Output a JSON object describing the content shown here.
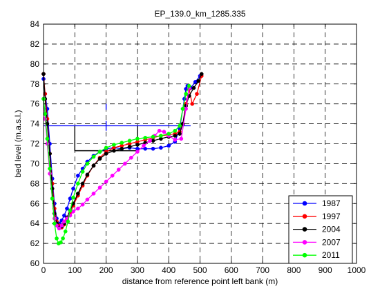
{
  "chart_data": {
    "type": "line",
    "title": "EP_139.0_km_1285.335",
    "xlabel": "distance from reference point left bank (m)",
    "ylabel": "bed level (m.a.s.l.)",
    "xlim": [
      0,
      1000
    ],
    "ylim": [
      60,
      84
    ],
    "xticks": [
      0,
      100,
      200,
      300,
      400,
      500,
      600,
      700,
      800,
      900,
      1000
    ],
    "yticks": [
      60,
      62,
      64,
      66,
      68,
      70,
      72,
      74,
      76,
      78,
      80,
      82,
      84
    ],
    "grid": true,
    "legend_position": "bottom-right",
    "annotation_lines": [
      {
        "name": "structure-outline",
        "color": "#000000",
        "x": [
          100,
          100,
          300,
          300
        ],
        "y": [
          73.8,
          71.3,
          71.3,
          73.8
        ]
      },
      {
        "name": "reference-level",
        "color": "#0000ff",
        "x": [
          0,
          470
        ],
        "y": [
          73.8,
          73.8
        ]
      },
      {
        "name": "reference-tick",
        "color": "#0000ff",
        "x": [
          200,
          200
        ],
        "y": [
          73.3,
          74.3
        ]
      },
      {
        "name": "reference-tick-top",
        "color": "#0000ff",
        "x": [
          200,
          200
        ],
        "y": [
          75.4,
          76.0
        ]
      }
    ],
    "series": [
      {
        "name": "1987",
        "color": "#0000ff",
        "x": [
          0,
          5,
          12,
          20,
          28,
          35,
          42,
          50,
          58,
          66,
          75,
          85,
          95,
          110,
          125,
          140,
          160,
          180,
          200,
          225,
          250,
          275,
          300,
          325,
          350,
          375,
          400,
          420,
          435,
          445,
          450,
          455,
          460,
          470,
          485,
          500
        ],
        "y": [
          78.5,
          77,
          75.5,
          72,
          68.5,
          66,
          64.5,
          64,
          64.3,
          64.8,
          65.5,
          66.5,
          67.5,
          68.8,
          69.5,
          70.2,
          70.8,
          71.2,
          71.5,
          71.6,
          71.5,
          71.6,
          71.5,
          71.5,
          71.5,
          71.6,
          71.8,
          72.2,
          73.5,
          75.5,
          76.5,
          77.5,
          77.8,
          77.6,
          78.2,
          78.8
        ]
      },
      {
        "name": "1997",
        "color": "#ff0000",
        "x": [
          0,
          5,
          12,
          20,
          28,
          35,
          42,
          50,
          58,
          66,
          75,
          85,
          95,
          110,
          125,
          140,
          160,
          180,
          200,
          225,
          250,
          275,
          300,
          325,
          350,
          375,
          400,
          420,
          435,
          445,
          455,
          465,
          475,
          490,
          505
        ],
        "y": [
          79,
          77,
          74.5,
          71,
          68,
          65.5,
          64.2,
          63.8,
          63.6,
          63.9,
          64.4,
          65,
          65.8,
          66.8,
          67.8,
          68.8,
          69.8,
          70.6,
          71.2,
          71.6,
          71.8,
          72,
          72.2,
          72.4,
          72.6,
          72.8,
          72.9,
          73,
          73.2,
          74,
          76,
          77.5,
          76,
          77,
          78.8
        ]
      },
      {
        "name": "2004",
        "color": "#000000",
        "x": [
          0,
          5,
          12,
          20,
          28,
          35,
          42,
          50,
          58,
          66,
          75,
          85,
          95,
          110,
          125,
          140,
          160,
          180,
          200,
          225,
          250,
          275,
          300,
          325,
          350,
          375,
          400,
          420,
          435,
          445,
          455,
          465,
          480,
          495,
          505
        ],
        "y": [
          79,
          76.5,
          74,
          71,
          67.5,
          65,
          64,
          63.6,
          63.7,
          64,
          64.6,
          65.3,
          66,
          67,
          68,
          68.9,
          69.8,
          70.5,
          71,
          71.3,
          71.5,
          71.7,
          71.9,
          72.1,
          72.3,
          72.5,
          72.7,
          72.8,
          73,
          74,
          75.8,
          76.8,
          77.6,
          78.3,
          79
        ]
      },
      {
        "name": "2007",
        "color": "#ff00ff",
        "x": [
          0,
          5,
          12,
          20,
          28,
          35,
          42,
          50,
          58,
          66,
          75,
          85,
          95,
          110,
          125,
          140,
          160,
          180,
          200,
          220,
          240,
          260,
          280,
          300,
          320,
          340,
          355,
          370,
          385,
          400,
          420,
          440,
          455,
          465
        ],
        "y": [
          76.5,
          74.5,
          72,
          69,
          66.5,
          64.5,
          63.8,
          63.5,
          63.8,
          64.2,
          64.5,
          64.8,
          65.2,
          65.5,
          65.9,
          66.4,
          67,
          67.6,
          68.2,
          68.8,
          69.4,
          70,
          70.6,
          71.2,
          71.8,
          72.3,
          72.8,
          73.3,
          73.2,
          72.8,
          72.4,
          72.5,
          75.5,
          77.6
        ]
      },
      {
        "name": "2011",
        "color": "#00ff00",
        "x": [
          0,
          5,
          12,
          20,
          28,
          35,
          42,
          48,
          55,
          62,
          70,
          78,
          85,
          95,
          110,
          125,
          140,
          160,
          180,
          200,
          225,
          250,
          275,
          300,
          325,
          350,
          375,
          400,
          420,
          435,
          445,
          455,
          465
        ],
        "y": [
          76.5,
          75,
          72.5,
          69.5,
          66.5,
          64,
          62.5,
          62,
          62.1,
          62.5,
          63.2,
          64.2,
          65.3,
          66.6,
          68,
          69.2,
          70,
          70.7,
          71.2,
          71.6,
          71.9,
          72.1,
          72.3,
          72.5,
          72.6,
          72.7,
          72.8,
          73,
          73.3,
          73.8,
          75.5,
          77,
          77.8
        ]
      }
    ]
  }
}
